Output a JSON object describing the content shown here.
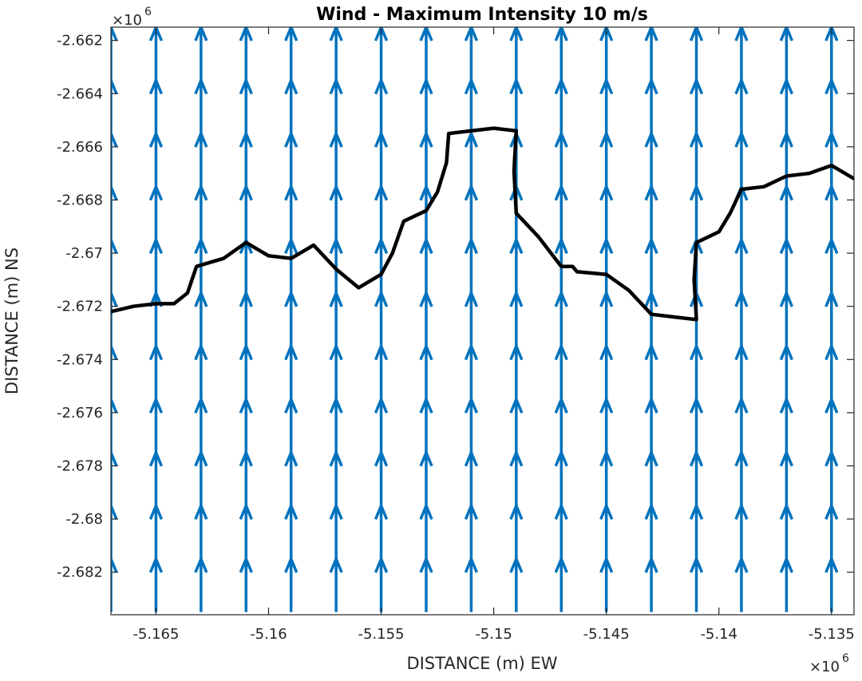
{
  "chart_data": {
    "type": "quiver",
    "title": "Wind - Maximum Intensity 10 m/s",
    "xlabel": "DISTANCE (m) EW",
    "ylabel": "DISTANCE (m) NS",
    "x_exponent_base": "×10",
    "x_exponent_power": "6",
    "y_exponent_base": "×10",
    "y_exponent_power": "6",
    "xlim": [
      -5.167,
      -5.134
    ],
    "ylim": [
      -2.6836,
      -2.6615
    ],
    "xticks": [
      -5.165,
      -5.16,
      -5.155,
      -5.15,
      -5.145,
      -5.14,
      -5.135
    ],
    "xtick_labels": [
      "-5.165",
      "-5.16",
      "-5.155",
      "-5.15",
      "-5.145",
      "-5.14",
      "-5.135"
    ],
    "yticks": [
      -2.662,
      -2.664,
      -2.666,
      -2.668,
      -2.67,
      -2.672,
      -2.674,
      -2.676,
      -2.678,
      -2.68,
      -2.682
    ],
    "ytick_labels": [
      "-2.662",
      "-2.664",
      "-2.666",
      "-2.668",
      "-2.67",
      "-2.672",
      "-2.674",
      "-2.676",
      "-2.678",
      "-2.68",
      "-2.682"
    ],
    "grid": false,
    "vector_field": {
      "color": "#0072BD",
      "direction": "north",
      "u": 0,
      "v": 1,
      "x_start": -5.167,
      "x_step": 0.002,
      "x_count": 17,
      "y_start": -2.6835,
      "y_step": 0.002,
      "y_count": 12,
      "arrow_length": 0.002
    },
    "coastline": {
      "color": "#000000",
      "x": [
        -5.167,
        -5.166,
        -5.165,
        -5.1645,
        -5.1642,
        -5.1636,
        -5.1632,
        -5.162,
        -5.161,
        -5.16,
        -5.159,
        -5.158,
        -5.157,
        -5.156,
        -5.155,
        -5.1545,
        -5.154,
        -5.153,
        -5.1525,
        -5.1521,
        -5.152,
        -5.151,
        -5.15,
        -5.149,
        -5.1491,
        -5.149,
        -5.148,
        -5.147,
        -5.1465,
        -5.1463,
        -5.145,
        -5.144,
        -5.143,
        -5.142,
        -5.141,
        -5.1411,
        -5.141,
        -5.14,
        -5.1395,
        -5.139,
        -5.138,
        -5.137,
        -5.136,
        -5.135,
        -5.134
      ],
      "y": [
        -2.6722,
        -2.672,
        -2.6719,
        -2.6719,
        -2.6719,
        -2.6715,
        -2.6705,
        -2.6702,
        -2.6696,
        -2.6701,
        -2.6702,
        -2.6697,
        -2.6706,
        -2.6713,
        -2.6708,
        -2.67,
        -2.6688,
        -2.6684,
        -2.6677,
        -2.6666,
        -2.6655,
        -2.6654,
        -2.6653,
        -2.6654,
        -2.6669,
        -2.6685,
        -2.6694,
        -2.6705,
        -2.6705,
        -2.6707,
        -2.6708,
        -2.6714,
        -2.6723,
        -2.6724,
        -2.6725,
        -2.671,
        -2.6696,
        -2.6692,
        -2.6685,
        -2.6676,
        -2.6675,
        -2.6671,
        -2.667,
        -2.6667,
        -2.6672
      ]
    }
  }
}
